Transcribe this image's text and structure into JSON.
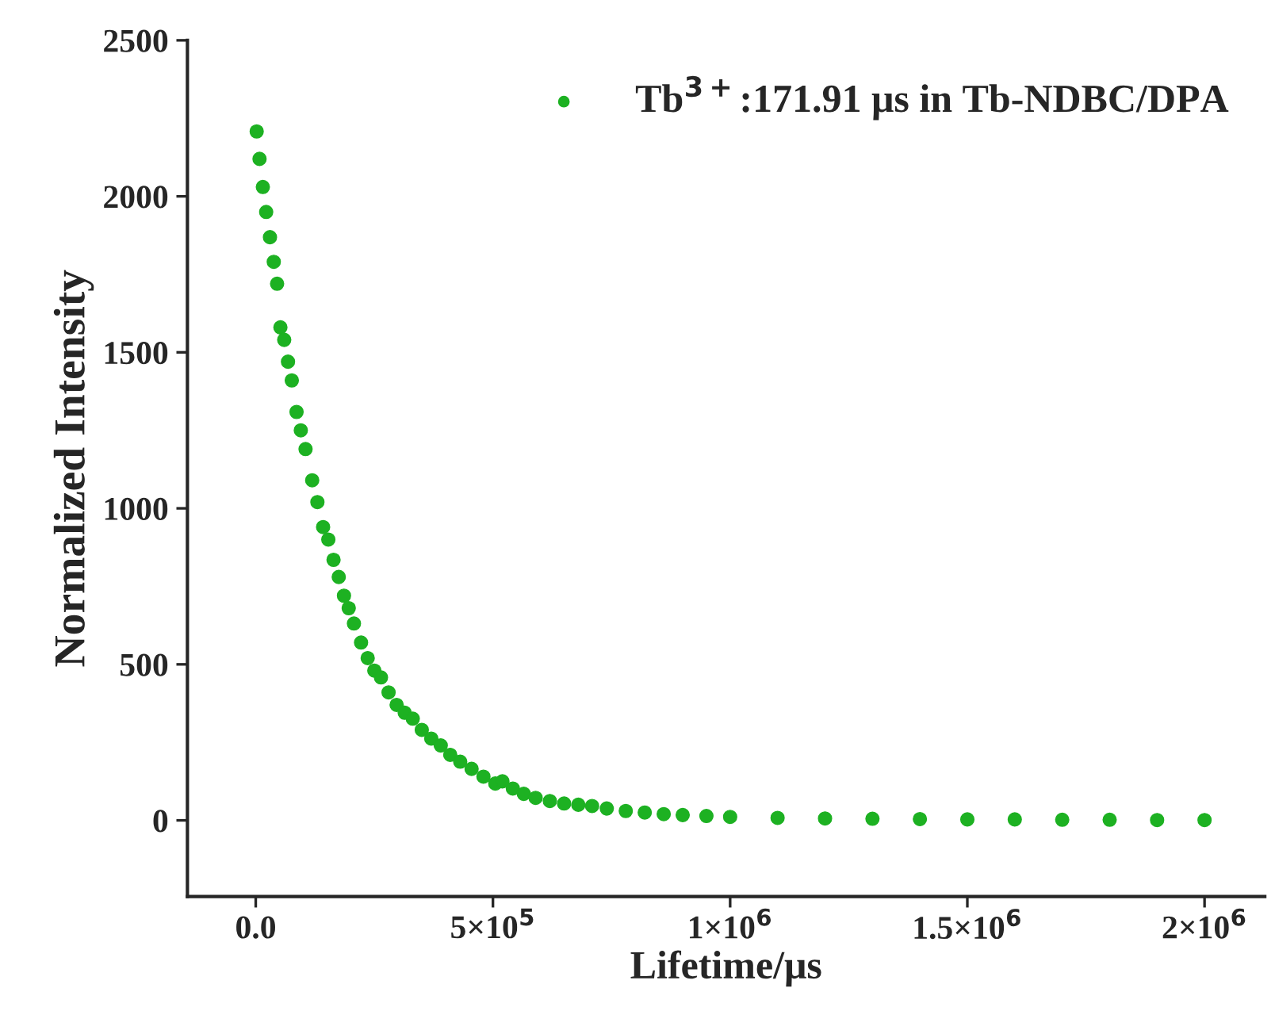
{
  "chart_data": {
    "type": "scatter",
    "xlabel": "Lifetime/μs",
    "ylabel": "Normalized Intensity",
    "xlim": [
      -144000,
      2127000
    ],
    "ylim": [
      -244,
      2500
    ],
    "xticks": [
      {
        "value": 0,
        "label": "0.0"
      },
      {
        "value": 500000,
        "label": "5×10$^{5}$"
      },
      {
        "value": 1000000,
        "label": "1×10$^{6}$"
      },
      {
        "value": 1500000,
        "label": "1.5×10$^{6}$"
      },
      {
        "value": 2000000,
        "label": "2×10$^{6}$"
      }
    ],
    "yticks": [
      0,
      500,
      1000,
      1500,
      2000,
      2500
    ],
    "marker": "circle",
    "legend": "top right",
    "grid": false,
    "series": [
      {
        "name": "Tb$^{3+}$:171.91 μs in Tb-NDBC/DPA",
        "color": "#1db122",
        "x": [
          2000,
          8000,
          15000,
          22000,
          30000,
          38000,
          45000,
          52000,
          60000,
          68000,
          76000,
          86000,
          95000,
          105000,
          119000,
          130000,
          142000,
          153000,
          164000,
          175000,
          186000,
          196000,
          207000,
          222000,
          236000,
          250000,
          264000,
          280000,
          297000,
          314000,
          331000,
          350000,
          370000,
          390000,
          410000,
          431000,
          455000,
          480000,
          505000,
          520000,
          542000,
          565000,
          590000,
          620000,
          650000,
          680000,
          709000,
          740000,
          780000,
          820000,
          860000,
          900000,
          950000,
          1000000,
          1100000,
          1200000,
          1300000,
          1400000,
          1500000,
          1600000,
          1700000,
          1800000,
          1900000,
          2000000
        ],
        "values": [
          2208,
          2120,
          2030,
          1950,
          1869,
          1790,
          1720,
          1580,
          1540,
          1470,
          1410,
          1309,
          1250,
          1190,
          1090,
          1020,
          940,
          900,
          835,
          780,
          720,
          680,
          631,
          570,
          520,
          480,
          458,
          410,
          370,
          345,
          326,
          290,
          262,
          240,
          210,
          188,
          165,
          140,
          118,
          125,
          102,
          85,
          72,
          62,
          54,
          50,
          46,
          38,
          30,
          25,
          20,
          17,
          14,
          11,
          8,
          6,
          5,
          4,
          3,
          3,
          2,
          2,
          1,
          1
        ]
      }
    ]
  }
}
